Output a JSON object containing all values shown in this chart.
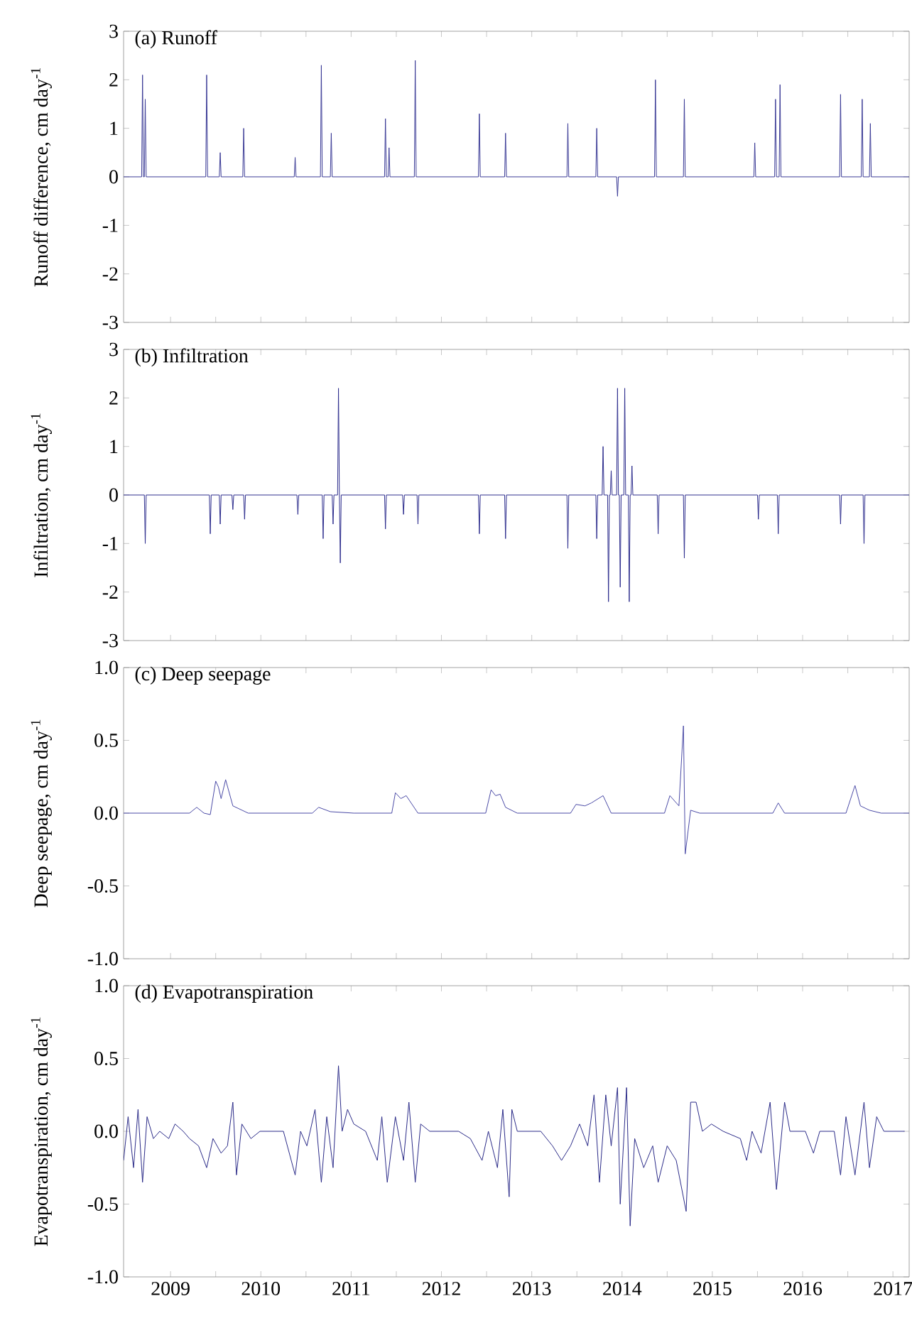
{
  "chart_data": [
    {
      "type": "line",
      "title": "(a) Runoff",
      "ylabel": "Runoff difference, cm day$^{-1}$",
      "color": "#3a3a96",
      "tick_labels": "y",
      "xlim": [
        2008.48,
        2017.18
      ],
      "ylim": [
        -3,
        3
      ],
      "yticks": [
        -3,
        -2,
        -1,
        0,
        1,
        2,
        3
      ],
      "xticks": [
        2009,
        {
          "value": 2009.5,
          "label": null
        },
        2010,
        {
          "value": 2010.5,
          "label": null
        },
        2011,
        {
          "value": 2011.5,
          "label": null
        },
        2012,
        {
          "value": 2012.5,
          "label": null
        },
        2013,
        {
          "value": 2013.5,
          "label": null
        },
        2014,
        {
          "value": 2014.5,
          "label": null
        },
        2015,
        {
          "value": 2015.5,
          "label": null
        },
        2016,
        {
          "value": 2016.5,
          "label": null
        },
        2017
      ],
      "x": [
        2008.48,
        2008.68,
        2008.69,
        2008.7,
        2008.71,
        2008.72,
        2008.73,
        2009.39,
        2009.4,
        2009.41,
        2009.54,
        2009.55,
        2009.56,
        2009.8,
        2009.81,
        2009.82,
        2010.37,
        2010.38,
        2010.39,
        2010.66,
        2010.67,
        2010.68,
        2010.77,
        2010.78,
        2010.79,
        2011.37,
        2011.38,
        2011.39,
        2011.41,
        2011.42,
        2011.43,
        2011.7,
        2011.71,
        2011.72,
        2012.41,
        2012.42,
        2012.43,
        2012.7,
        2012.71,
        2012.72,
        2013.39,
        2013.4,
        2013.41,
        2013.71,
        2013.72,
        2013.73,
        2013.94,
        2013.95,
        2013.96,
        2014.36,
        2014.37,
        2014.38,
        2014.68,
        2014.69,
        2014.7,
        2015.46,
        2015.47,
        2015.48,
        2015.69,
        2015.7,
        2015.71,
        2015.74,
        2015.75,
        2015.76,
        2016.41,
        2016.42,
        2016.43,
        2016.65,
        2016.66,
        2016.67,
        2016.74,
        2016.75,
        2016.76,
        2017.18
      ],
      "values": [
        0,
        0,
        2.1,
        0,
        0,
        1.6,
        0,
        0,
        2.1,
        0,
        0,
        0.5,
        0,
        0,
        1.0,
        0,
        0,
        0.4,
        0,
        0,
        2.3,
        0,
        0,
        0.9,
        0,
        0,
        1.2,
        0,
        0,
        0.6,
        0,
        0,
        2.4,
        0,
        0,
        1.3,
        0,
        0,
        0.9,
        0,
        0,
        1.1,
        0,
        0,
        1.0,
        0,
        0,
        -0.4,
        0,
        0,
        2.0,
        0,
        0,
        1.6,
        0,
        0,
        0.7,
        0,
        0,
        1.6,
        0,
        0,
        1.9,
        0,
        0,
        1.7,
        0,
        0,
        1.6,
        0,
        0,
        1.1,
        0,
        0
      ]
    },
    {
      "type": "line",
      "title": "(b) Infiltration",
      "ylabel": "Infiltration, cm day$^{-1}$",
      "color": "#2e2e8e",
      "tick_labels": "y",
      "xlim": [
        2008.48,
        2017.18
      ],
      "ylim": [
        -3,
        3
      ],
      "yticks": [
        -3,
        -2,
        -1,
        0,
        1,
        2,
        3
      ],
      "xticks": [
        2009,
        {
          "value": 2009.5,
          "label": null
        },
        2010,
        {
          "value": 2010.5,
          "label": null
        },
        2011,
        {
          "value": 2011.5,
          "label": null
        },
        2012,
        {
          "value": 2012.5,
          "label": null
        },
        2013,
        {
          "value": 2013.5,
          "label": null
        },
        2014,
        {
          "value": 2014.5,
          "label": null
        },
        2015,
        {
          "value": 2015.5,
          "label": null
        },
        2016,
        {
          "value": 2016.5,
          "label": null
        },
        2017
      ],
      "x": [
        2008.48,
        2008.71,
        2008.72,
        2008.73,
        2009.43,
        2009.44,
        2009.45,
        2009.54,
        2009.55,
        2009.56,
        2009.68,
        2009.69,
        2009.7,
        2009.81,
        2009.82,
        2009.83,
        2010.4,
        2010.41,
        2010.42,
        2010.68,
        2010.69,
        2010.7,
        2010.79,
        2010.8,
        2010.81,
        2010.85,
        2010.86,
        2010.87,
        2010.87,
        2010.88,
        2010.89,
        2011.37,
        2011.38,
        2011.39,
        2011.57,
        2011.58,
        2011.59,
        2011.73,
        2011.74,
        2011.75,
        2012.41,
        2012.42,
        2012.43,
        2012.7,
        2012.71,
        2012.72,
        2013.39,
        2013.4,
        2013.41,
        2013.71,
        2013.72,
        2013.73,
        2013.78,
        2013.79,
        2013.8,
        2013.84,
        2013.85,
        2013.86,
        2013.87,
        2013.88,
        2013.89,
        2013.94,
        2013.95,
        2013.96,
        2013.97,
        2013.98,
        2013.99,
        2014.02,
        2014.03,
        2014.04,
        2014.07,
        2014.08,
        2014.09,
        2014.1,
        2014.11,
        2014.12,
        2014.39,
        2014.4,
        2014.41,
        2014.68,
        2014.69,
        2014.7,
        2015.5,
        2015.51,
        2015.52,
        2015.72,
        2015.73,
        2015.74,
        2016.41,
        2016.42,
        2016.43,
        2016.67,
        2016.68,
        2016.69,
        2017.18
      ],
      "values": [
        0,
        0,
        -1.0,
        0,
        0,
        -0.8,
        0,
        0,
        -0.6,
        0,
        0,
        -0.3,
        0,
        0,
        -0.5,
        0,
        0,
        -0.4,
        0,
        0,
        -0.9,
        0,
        0,
        -0.6,
        0,
        0,
        2.2,
        0,
        0,
        -1.4,
        0,
        0,
        -0.7,
        0,
        0,
        -0.4,
        0,
        0,
        -0.6,
        0,
        0,
        -0.8,
        0,
        0,
        -0.9,
        0,
        0,
        -1.1,
        0,
        0,
        -0.9,
        0,
        0,
        1.0,
        0,
        0,
        -2.2,
        0,
        0,
        0.5,
        0,
        0,
        2.2,
        0,
        0,
        -1.9,
        0,
        0,
        2.2,
        0,
        0,
        -2.2,
        0,
        0,
        0.6,
        0,
        0,
        -0.8,
        0,
        0,
        -1.3,
        0,
        0,
        -0.5,
        0,
        0,
        -0.8,
        0,
        0,
        -0.6,
        0,
        0,
        -1.0,
        0,
        0
      ]
    },
    {
      "type": "line",
      "title": "(c) Deep seepage",
      "ylabel": "Deep seepage, cm day$^{-1}$",
      "color": "#4a4aa6",
      "tick_labels": "y",
      "xlim": [
        2008.48,
        2017.18
      ],
      "ylim": [
        -1,
        1
      ],
      "yticks": [
        {
          "value": -1,
          "label": "-1.0"
        },
        -0.5,
        {
          "value": 0,
          "label": "0.0"
        },
        0.5,
        {
          "value": 1,
          "label": "1.0"
        }
      ],
      "xticks": [
        2009,
        {
          "value": 2009.5,
          "label": null
        },
        2010,
        {
          "value": 2010.5,
          "label": null
        },
        2011,
        {
          "value": 2011.5,
          "label": null
        },
        2012,
        {
          "value": 2012.5,
          "label": null
        },
        2013,
        {
          "value": 2013.5,
          "label": null
        },
        2014,
        {
          "value": 2014.5,
          "label": null
        },
        2015,
        {
          "value": 2015.5,
          "label": null
        },
        2016,
        {
          "value": 2016.5,
          "label": null
        },
        2017
      ],
      "x": [
        2008.48,
        2009.21,
        2009.29,
        2009.37,
        2009.44,
        2009.5,
        2009.53,
        2009.56,
        2009.61,
        2009.69,
        2009.86,
        2010.57,
        2010.64,
        2010.77,
        2011.03,
        2011.45,
        2011.49,
        2011.55,
        2011.61,
        2011.74,
        2012.49,
        2012.55,
        2012.6,
        2012.65,
        2012.71,
        2012.84,
        2013.43,
        2013.49,
        2013.59,
        2013.66,
        2013.79,
        2013.88,
        2014.47,
        2014.53,
        2014.63,
        2014.68,
        2014.7,
        2014.76,
        2014.86,
        2015.67,
        2015.73,
        2015.8,
        2016.48,
        2016.58,
        2016.64,
        2016.74,
        2016.87,
        2017.18
      ],
      "values": [
        0,
        0,
        0.04,
        0,
        -0.01,
        0.22,
        0.18,
        0.1,
        0.23,
        0.05,
        0,
        0,
        0.04,
        0.01,
        0,
        0,
        0.14,
        0.1,
        0.12,
        0,
        0,
        0.16,
        0.12,
        0.13,
        0.04,
        0,
        0,
        0.06,
        0.05,
        0.07,
        0.12,
        0,
        0,
        0.12,
        0.05,
        0.6,
        -0.28,
        0.02,
        0,
        0,
        0.07,
        0,
        0,
        0.19,
        0.05,
        0.02,
        0,
        0
      ]
    },
    {
      "type": "line",
      "title": "(d) Evapotranspiration",
      "ylabel": "Evapotranspiration, cm day$^{-1}$",
      "color": "#2a2a88",
      "xlim": [
        2008.48,
        2017.18
      ],
      "ylim": [
        -1,
        1
      ],
      "yticks": [
        {
          "value": -1,
          "label": "-1.0"
        },
        -0.5,
        {
          "value": 0,
          "label": "0.0"
        },
        0.5,
        {
          "value": 1,
          "label": "1.0"
        }
      ],
      "xticks": [
        2009,
        {
          "value": 2009.5,
          "label": null
        },
        2010,
        {
          "value": 2010.5,
          "label": null
        },
        2011,
        {
          "value": 2011.5,
          "label": null
        },
        2012,
        {
          "value": 2012.5,
          "label": null
        },
        2013,
        {
          "value": 2013.5,
          "label": null
        },
        2014,
        {
          "value": 2014.5,
          "label": null
        },
        2015,
        {
          "value": 2015.5,
          "label": null
        },
        2016,
        {
          "value": 2016.5,
          "label": null
        },
        2017
      ],
      "x": [
        2008.48,
        2008.53,
        2008.59,
        2008.64,
        2008.69,
        2008.74,
        2008.81,
        2008.88,
        2008.98,
        2009.05,
        2009.14,
        2009.21,
        2009.31,
        2009.4,
        2009.47,
        2009.56,
        2009.63,
        2009.69,
        2009.73,
        2009.79,
        2009.89,
        2009.99,
        2010.25,
        2010.38,
        2010.44,
        2010.51,
        2010.6,
        2010.67,
        2010.73,
        2010.8,
        2010.86,
        2010.9,
        2010.96,
        2011.03,
        2011.16,
        2011.29,
        2011.34,
        2011.4,
        2011.49,
        2011.58,
        2011.64,
        2011.71,
        2011.77,
        2011.87,
        2012.19,
        2012.32,
        2012.45,
        2012.52,
        2012.62,
        2012.68,
        2012.75,
        2012.78,
        2012.84,
        2013.1,
        2013.23,
        2013.33,
        2013.43,
        2013.53,
        2013.62,
        2013.69,
        2013.75,
        2013.82,
        2013.88,
        2013.95,
        2013.98,
        2014.05,
        2014.09,
        2014.14,
        2014.24,
        2014.34,
        2014.4,
        2014.5,
        2014.6,
        2014.71,
        2014.76,
        2014.82,
        2014.89,
        2014.99,
        2015.12,
        2015.31,
        2015.38,
        2015.44,
        2015.54,
        2015.64,
        2015.71,
        2015.8,
        2015.86,
        2016.03,
        2016.12,
        2016.19,
        2016.35,
        2016.42,
        2016.48,
        2016.58,
        2016.68,
        2016.74,
        2016.82,
        2016.9,
        2017.13
      ],
      "values": [
        -0.2,
        0.1,
        -0.25,
        0.15,
        -0.35,
        0.1,
        -0.05,
        0,
        -0.05,
        0.05,
        0,
        -0.05,
        -0.1,
        -0.25,
        -0.05,
        -0.15,
        -0.1,
        0.2,
        -0.3,
        0.05,
        -0.05,
        0,
        0,
        -0.3,
        0,
        -0.1,
        0.15,
        -0.35,
        0.1,
        -0.25,
        0.45,
        0,
        0.15,
        0.05,
        0,
        -0.2,
        0.1,
        -0.35,
        0.1,
        -0.2,
        0.2,
        -0.35,
        0.05,
        0,
        0,
        -0.05,
        -0.2,
        0,
        -0.25,
        0.15,
        -0.45,
        0.15,
        0,
        0,
        -0.1,
        -0.2,
        -0.1,
        0.05,
        -0.1,
        0.25,
        -0.35,
        0.25,
        -0.1,
        0.3,
        -0.5,
        0.3,
        -0.65,
        -0.05,
        -0.25,
        -0.1,
        -0.35,
        -0.1,
        -0.2,
        -0.55,
        0.2,
        0.2,
        0,
        0.05,
        0,
        -0.05,
        -0.2,
        0,
        -0.15,
        0.2,
        -0.4,
        0.2,
        0,
        0,
        -0.15,
        0,
        0,
        -0.3,
        0.1,
        -0.3,
        0.2,
        -0.25,
        0.1,
        0,
        0
      ]
    }
  ]
}
